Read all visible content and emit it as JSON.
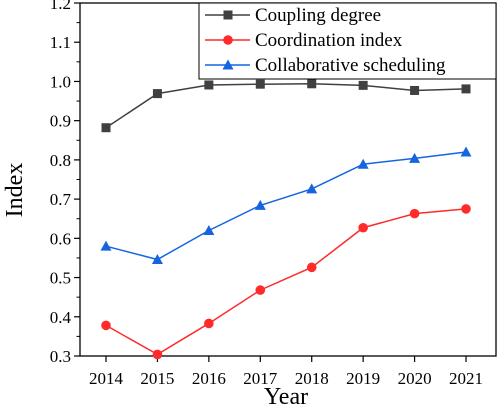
{
  "chart_data": {
    "type": "line",
    "title": "",
    "xlabel": "Year",
    "ylabel": "Index",
    "categories": [
      "2014",
      "2015",
      "2016",
      "2017",
      "2018",
      "2019",
      "2020",
      "2021"
    ],
    "ylim": [
      0.3,
      1.2
    ],
    "yticks": [
      "0.3",
      "0.4",
      "0.5",
      "0.6",
      "0.7",
      "0.8",
      "0.9",
      "1.0",
      "1.1",
      "1.2"
    ],
    "grid": false,
    "legend_position": "top-right",
    "series": [
      {
        "name": "Coupling degree",
        "color": "#404040",
        "marker": "square",
        "values": [
          0.882,
          0.969,
          0.991,
          0.993,
          0.994,
          0.99,
          0.977,
          0.981
        ]
      },
      {
        "name": "Coordination index",
        "color": "#ff2a2a",
        "marker": "circle",
        "values": [
          0.378,
          0.304,
          0.383,
          0.468,
          0.526,
          0.627,
          0.663,
          0.675
        ]
      },
      {
        "name": "Collaborative scheduling",
        "color": "#1565e0",
        "marker": "triangle",
        "values": [
          0.58,
          0.546,
          0.62,
          0.684,
          0.726,
          0.789,
          0.804,
          0.82
        ]
      }
    ]
  }
}
